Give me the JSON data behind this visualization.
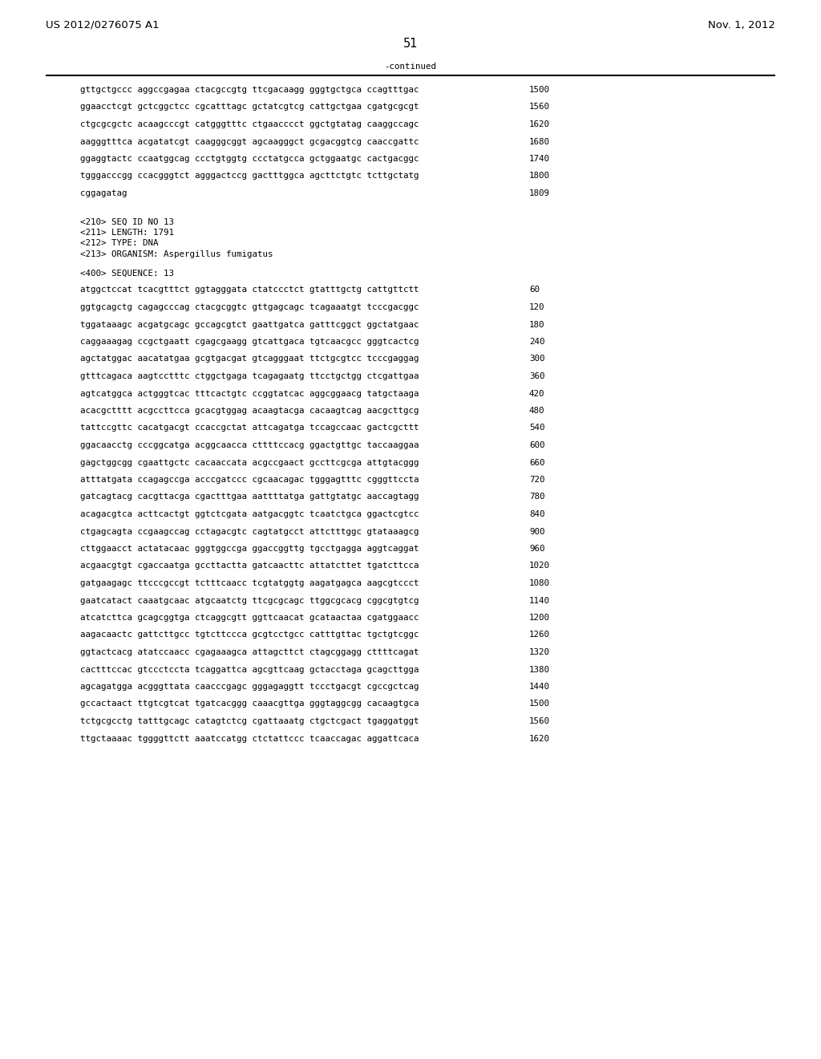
{
  "header_left": "US 2012/0276075 A1",
  "header_right": "Nov. 1, 2012",
  "page_number": "51",
  "continued_label": "-continued",
  "background_color": "#ffffff",
  "text_color": "#000000",
  "font_size_header": 9.5,
  "font_size_body": 7.8,
  "font_size_page": 10.5,
  "continuation_lines": [
    {
      "seq": "gttgctgccc aggccgagaa ctacgccgtg ttcgacaagg gggtgctgca ccagtttgac",
      "num": "1500"
    },
    {
      "seq": "ggaacctcgt gctcggctcc cgcatttagc gctatcgtcg cattgctgaa cgatgcgcgt",
      "num": "1560"
    },
    {
      "seq": "ctgcgcgctc acaagcccgt catgggtttc ctgaacccct ggctgtatag caaggccagc",
      "num": "1620"
    },
    {
      "seq": "aagggtttca acgatatcgt caagggcggt agcaagggct gcgacggtcg caaccgattc",
      "num": "1680"
    },
    {
      "seq": "ggaggtactc ccaatggcag ccctgtggtg ccctatgcca gctggaatgc cactgacggc",
      "num": "1740"
    },
    {
      "seq": "tgggacccgg ccacgggtct agggactccg gactttggca agcttctgtc tcttgctatg",
      "num": "1800"
    },
    {
      "seq": "cggagatag",
      "num": "1809"
    }
  ],
  "seq_info_lines": [
    "<210> SEQ ID NO 13",
    "<211> LENGTH: 1791",
    "<212> TYPE: DNA",
    "<213> ORGANISM: Aspergillus fumigatus"
  ],
  "seq400_label": "<400> SEQUENCE: 13",
  "sequence_lines": [
    {
      "seq": "atggctccat tcacgtttct ggtagggata ctatccctct gtatttgctg cattgttctt",
      "num": "60"
    },
    {
      "seq": "ggtgcagctg cagagcccag ctacgcggtc gttgagcagc tcagaaatgt tcccgacggc",
      "num": "120"
    },
    {
      "seq": "tggataaagc acgatgcagc gccagcgtct gaattgatca gatttcggct ggctatgaac",
      "num": "180"
    },
    {
      "seq": "caggaaagag ccgctgaatt cgagcgaagg gtcattgaca tgtcaacgcc gggtcactcg",
      "num": "240"
    },
    {
      "seq": "agctatggac aacatatgaa gcgtgacgat gtcagggaat ttctgcgtcc tcccgaggag",
      "num": "300"
    },
    {
      "seq": "gtttcagaca aagtcctttc ctggctgaga tcagagaatg ttcctgctgg ctcgattgaa",
      "num": "360"
    },
    {
      "seq": "agtcatggca actgggtcac tttcactgtc ccggtatcac aggcggaacg tatgctaaga",
      "num": "420"
    },
    {
      "seq": "acacgctttt acgccttcca gcacgtggag acaagtacga cacaagtcag aacgcttgcg",
      "num": "480"
    },
    {
      "seq": "tattccgttc cacatgacgt ccaccgctat attcagatga tccagccaac gactcgcttt",
      "num": "540"
    },
    {
      "seq": "ggacaacctg cccggcatga acggcaacca cttttccacg ggactgttgc taccaaggaa",
      "num": "600"
    },
    {
      "seq": "gagctggcgg cgaattgctc cacaaccata acgccgaact gccttcgcga attgtacggg",
      "num": "660"
    },
    {
      "seq": "atttatgata ccagagccga acccgatccc cgcaacagac tgggagtttc cgggttccta",
      "num": "720"
    },
    {
      "seq": "gatcagtacg cacgttacga cgactttgaa aattttatga gattgtatgc aaccagtagg",
      "num": "780"
    },
    {
      "seq": "acagacgtca acttcactgt ggtctcgata aatgacggtc tcaatctgca ggactcgtcc",
      "num": "840"
    },
    {
      "seq": "ctgagcagta ccgaagccag cctagacgtc cagtatgcct attctttggc gtataaagcg",
      "num": "900"
    },
    {
      "seq": "cttggaacct actatacaac gggtggccga ggaccggttg tgcctgagga aggtcaggat",
      "num": "960"
    },
    {
      "seq": "acgaacgtgt cgaccaatga gccttactta gatcaacttc attatcttet tgatcttcca",
      "num": "1020"
    },
    {
      "seq": "gatgaagagc ttcccgccgt tctttcaacc tcgtatggtg aagatgagca aagcgtccct",
      "num": "1080"
    },
    {
      "seq": "gaatcatact caaatgcaac atgcaatctg ttcgcgcagc ttggcgcacg cggcgtgtcg",
      "num": "1140"
    },
    {
      "seq": "atcatcttca gcagcggtga ctcaggcgtt ggttcaacat gcataactaa cgatggaacc",
      "num": "1200"
    },
    {
      "seq": "aagacaactc gattcttgcc tgtcttccca gcgtcctgcc catttgttac tgctgtcggc",
      "num": "1260"
    },
    {
      "seq": "ggtactcacg atatccaacc cgagaaagca attagcttct ctagcggagg cttttcagat",
      "num": "1320"
    },
    {
      "seq": "cactttccac gtccctccta tcaggattca agcgttcaag gctacctaga gcagcttgga",
      "num": "1380"
    },
    {
      "seq": "agcagatgga acgggttata caacccgagc gggagaggtt tccctgacgt cgccgctcag",
      "num": "1440"
    },
    {
      "seq": "gccactaact ttgtcgtcat tgatcacggg caaacgttga gggtaggcgg cacaagtgca",
      "num": "1500"
    },
    {
      "seq": "tctgcgcctg tatttgcagc catagtctcg cgattaaatg ctgctcgact tgaggatggt",
      "num": "1560"
    },
    {
      "seq": "ttgctaaaac tggggttctt aaatccatgg ctctattccc tcaaccagac aggattcaca",
      "num": "1620"
    }
  ]
}
